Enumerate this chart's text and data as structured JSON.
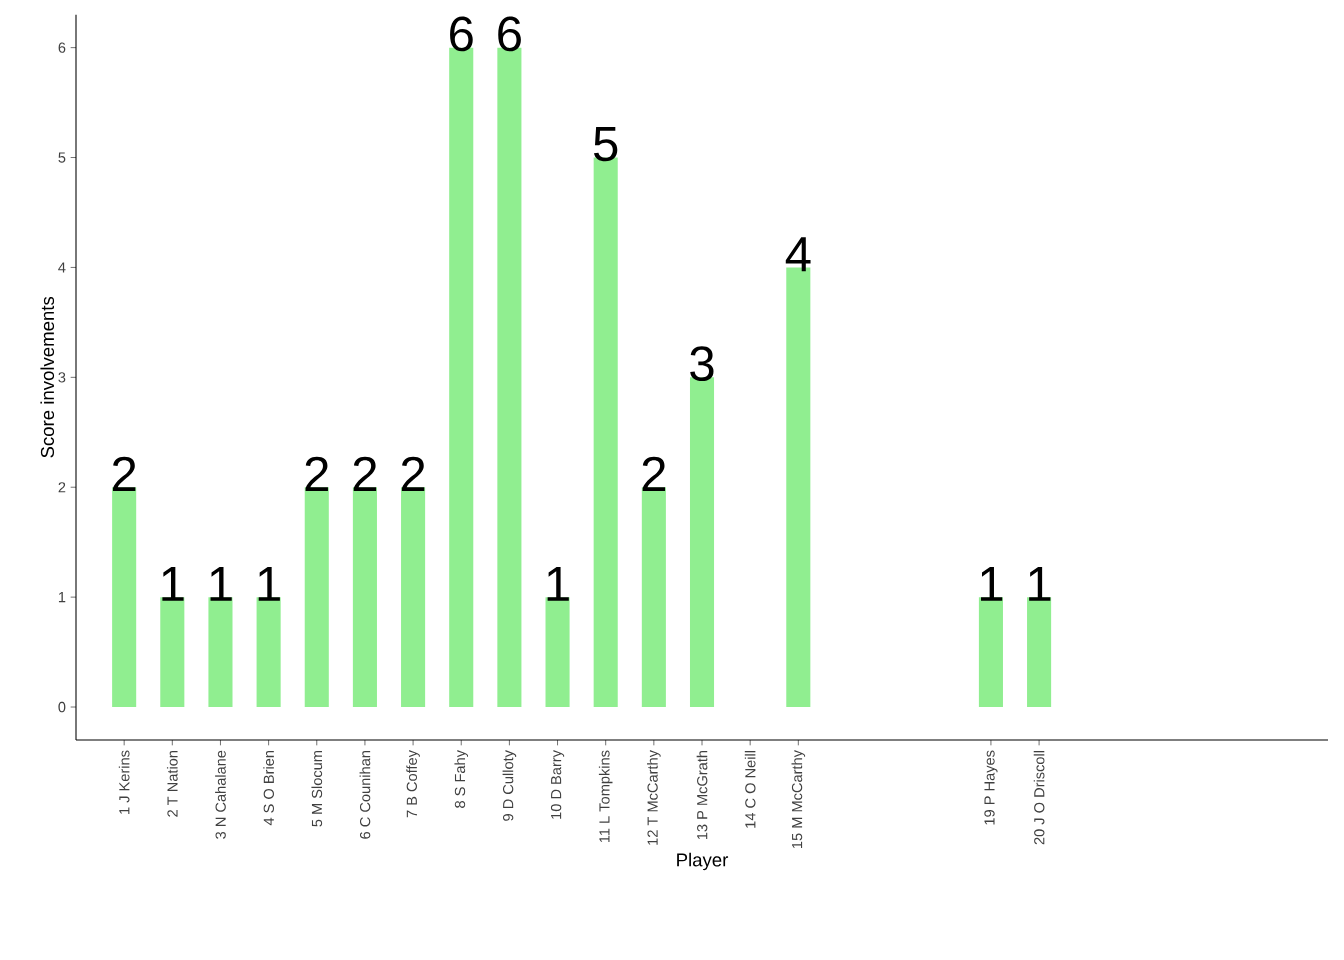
{
  "chart_data": {
    "type": "bar",
    "xlabel": "Player",
    "ylabel": "Score involvements",
    "categories": [
      "1 J Kerins",
      "2 T Nation",
      "3 N Cahalane",
      "4 S O Brien",
      "5 M Slocum",
      "6 C Counihan",
      "7 B Coffey",
      "8 S Fahy",
      "9 D Culloty",
      "10 D Barry",
      "11 L Tompkins",
      "12 T McCarthy",
      "13 P McGrath",
      "14 C O Neill",
      "15 M McCarthy",
      null,
      null,
      null,
      "19 P Hayes",
      "20 J O Driscoll",
      null,
      null,
      null,
      null,
      null
    ],
    "values": [
      2,
      1,
      1,
      1,
      2,
      2,
      2,
      6,
      6,
      1,
      5,
      2,
      3,
      null,
      4,
      null,
      null,
      null,
      1,
      1,
      null,
      null,
      null,
      null,
      null
    ],
    "color": "#90ee90",
    "ylim": [
      -0.3,
      6.3
    ],
    "yticks": [
      0,
      1,
      2,
      3,
      4,
      5,
      6
    ],
    "data_labels": true,
    "grid": false
  }
}
